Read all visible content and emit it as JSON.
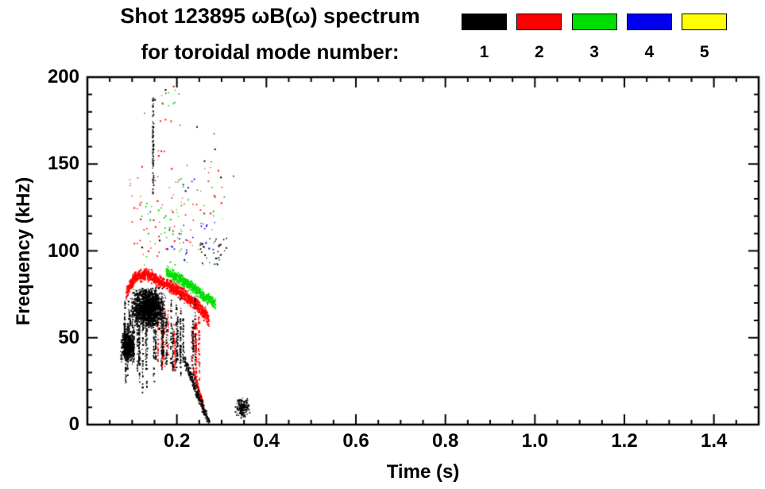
{
  "title": {
    "line1": "Shot 123895 ωB(ω) spectrum",
    "line2": "for toroidal mode number:"
  },
  "legend": {
    "items": [
      {
        "label": "1",
        "color": "#000000"
      },
      {
        "label": "2",
        "color": "#ff0000"
      },
      {
        "label": "3",
        "color": "#00dd00"
      },
      {
        "label": "4",
        "color": "#0000ee"
      },
      {
        "label": "5",
        "color": "#ffff00"
      }
    ]
  },
  "chart_data": {
    "type": "scatter",
    "title": "Shot 123895 ωB(ω) spectrum for toroidal mode number:",
    "xlabel": "Time (s)",
    "ylabel": "Frequency (kHz)",
    "xlim": [
      0,
      1.5
    ],
    "ylim": [
      0,
      200
    ],
    "grid": false,
    "legend_position": "top-right",
    "xticks": [
      0.2,
      0.4,
      0.6,
      0.8,
      1.0,
      1.2,
      1.4
    ],
    "xtick_labels": [
      "0.2",
      "0.4",
      "0.6",
      "0.8",
      "1.0",
      "1.2",
      "1.4"
    ],
    "yticks": [
      0,
      50,
      100,
      150,
      200
    ],
    "ytick_labels": [
      "0",
      "50",
      "100",
      "150",
      "200"
    ],
    "x_minor_step": 0.05,
    "y_minor_step": 10,
    "series": [
      {
        "name": "5",
        "color": "#ffff00",
        "clusters": []
      },
      {
        "name": "4",
        "color": "#0000ee",
        "clusters": [
          {
            "type": "sparse",
            "t": [
              0.17,
              0.285
            ],
            "f": [
              95,
              118
            ],
            "n": 22
          },
          {
            "type": "sparse",
            "t": [
              0.21,
              0.24
            ],
            "f": [
              130,
              142
            ],
            "n": 4
          }
        ]
      },
      {
        "name": "3",
        "color": "#00dd00",
        "clusters": [
          {
            "type": "band",
            "points": [
              [
                0.175,
                88
              ],
              [
                0.2,
                85
              ],
              [
                0.23,
                80
              ],
              [
                0.26,
                74
              ],
              [
                0.285,
                70
              ]
            ],
            "thickness": 6,
            "n": 700
          },
          {
            "type": "sparse",
            "t": [
              0.12,
              0.31
            ],
            "f": [
              92,
              142
            ],
            "n": 55
          },
          {
            "type": "sparse",
            "t": [
              0.165,
              0.195
            ],
            "f": [
              182,
              196
            ],
            "n": 8
          }
        ]
      },
      {
        "name": "2",
        "color": "#ff0000",
        "clusters": [
          {
            "type": "band",
            "points": [
              [
                0.085,
                76
              ],
              [
                0.105,
                85
              ],
              [
                0.13,
                87
              ],
              [
                0.16,
                83
              ],
              [
                0.19,
                79
              ],
              [
                0.22,
                74
              ],
              [
                0.245,
                69
              ],
              [
                0.27,
                61
              ]
            ],
            "thickness": 7,
            "n": 1400
          },
          {
            "type": "vstreaks",
            "t": [
              0.145,
              0.25
            ],
            "f": [
              25,
              68
            ],
            "streaks": 14,
            "per": 22
          },
          {
            "type": "descend",
            "t": [
              0.235,
              0.262
            ],
            "fStart": 32,
            "fEnd": 6,
            "jitter": 4,
            "n": 160
          },
          {
            "type": "sparse",
            "t": [
              0.09,
              0.3
            ],
            "f": [
              95,
              150
            ],
            "n": 70
          },
          {
            "type": "sparse",
            "t": [
              0.155,
              0.2
            ],
            "f": [
              152,
              196
            ],
            "n": 10
          }
        ]
      },
      {
        "name": "1",
        "color": "#000000",
        "clusters": [
          {
            "type": "blob",
            "t": [
              0.073,
              0.105
            ],
            "f": [
              36,
              54
            ],
            "n": 500
          },
          {
            "type": "blob",
            "t": [
              0.095,
              0.175
            ],
            "f": [
              55,
              80
            ],
            "n": 1600
          },
          {
            "type": "vstreaks",
            "t": [
              0.08,
              0.245
            ],
            "f": [
              18,
              78
            ],
            "streaks": 30,
            "per": 35
          },
          {
            "type": "vstreaks",
            "t": [
              0.14,
              0.155
            ],
            "f": [
              120,
              196
            ],
            "streaks": 3,
            "per": 25
          },
          {
            "type": "descend",
            "t": [
              0.215,
              0.272
            ],
            "fStart": 38,
            "fEnd": 0,
            "jitter": 5,
            "n": 260
          },
          {
            "type": "blob",
            "t": [
              0.328,
              0.362
            ],
            "f": [
              4,
              16
            ],
            "n": 160
          },
          {
            "type": "sparse",
            "t": [
              0.25,
              0.31
            ],
            "f": [
              92,
              108
            ],
            "n": 30
          },
          {
            "type": "sparse",
            "t": [
              0.11,
              0.33
            ],
            "f": [
              85,
              195
            ],
            "n": 20
          }
        ]
      }
    ]
  }
}
